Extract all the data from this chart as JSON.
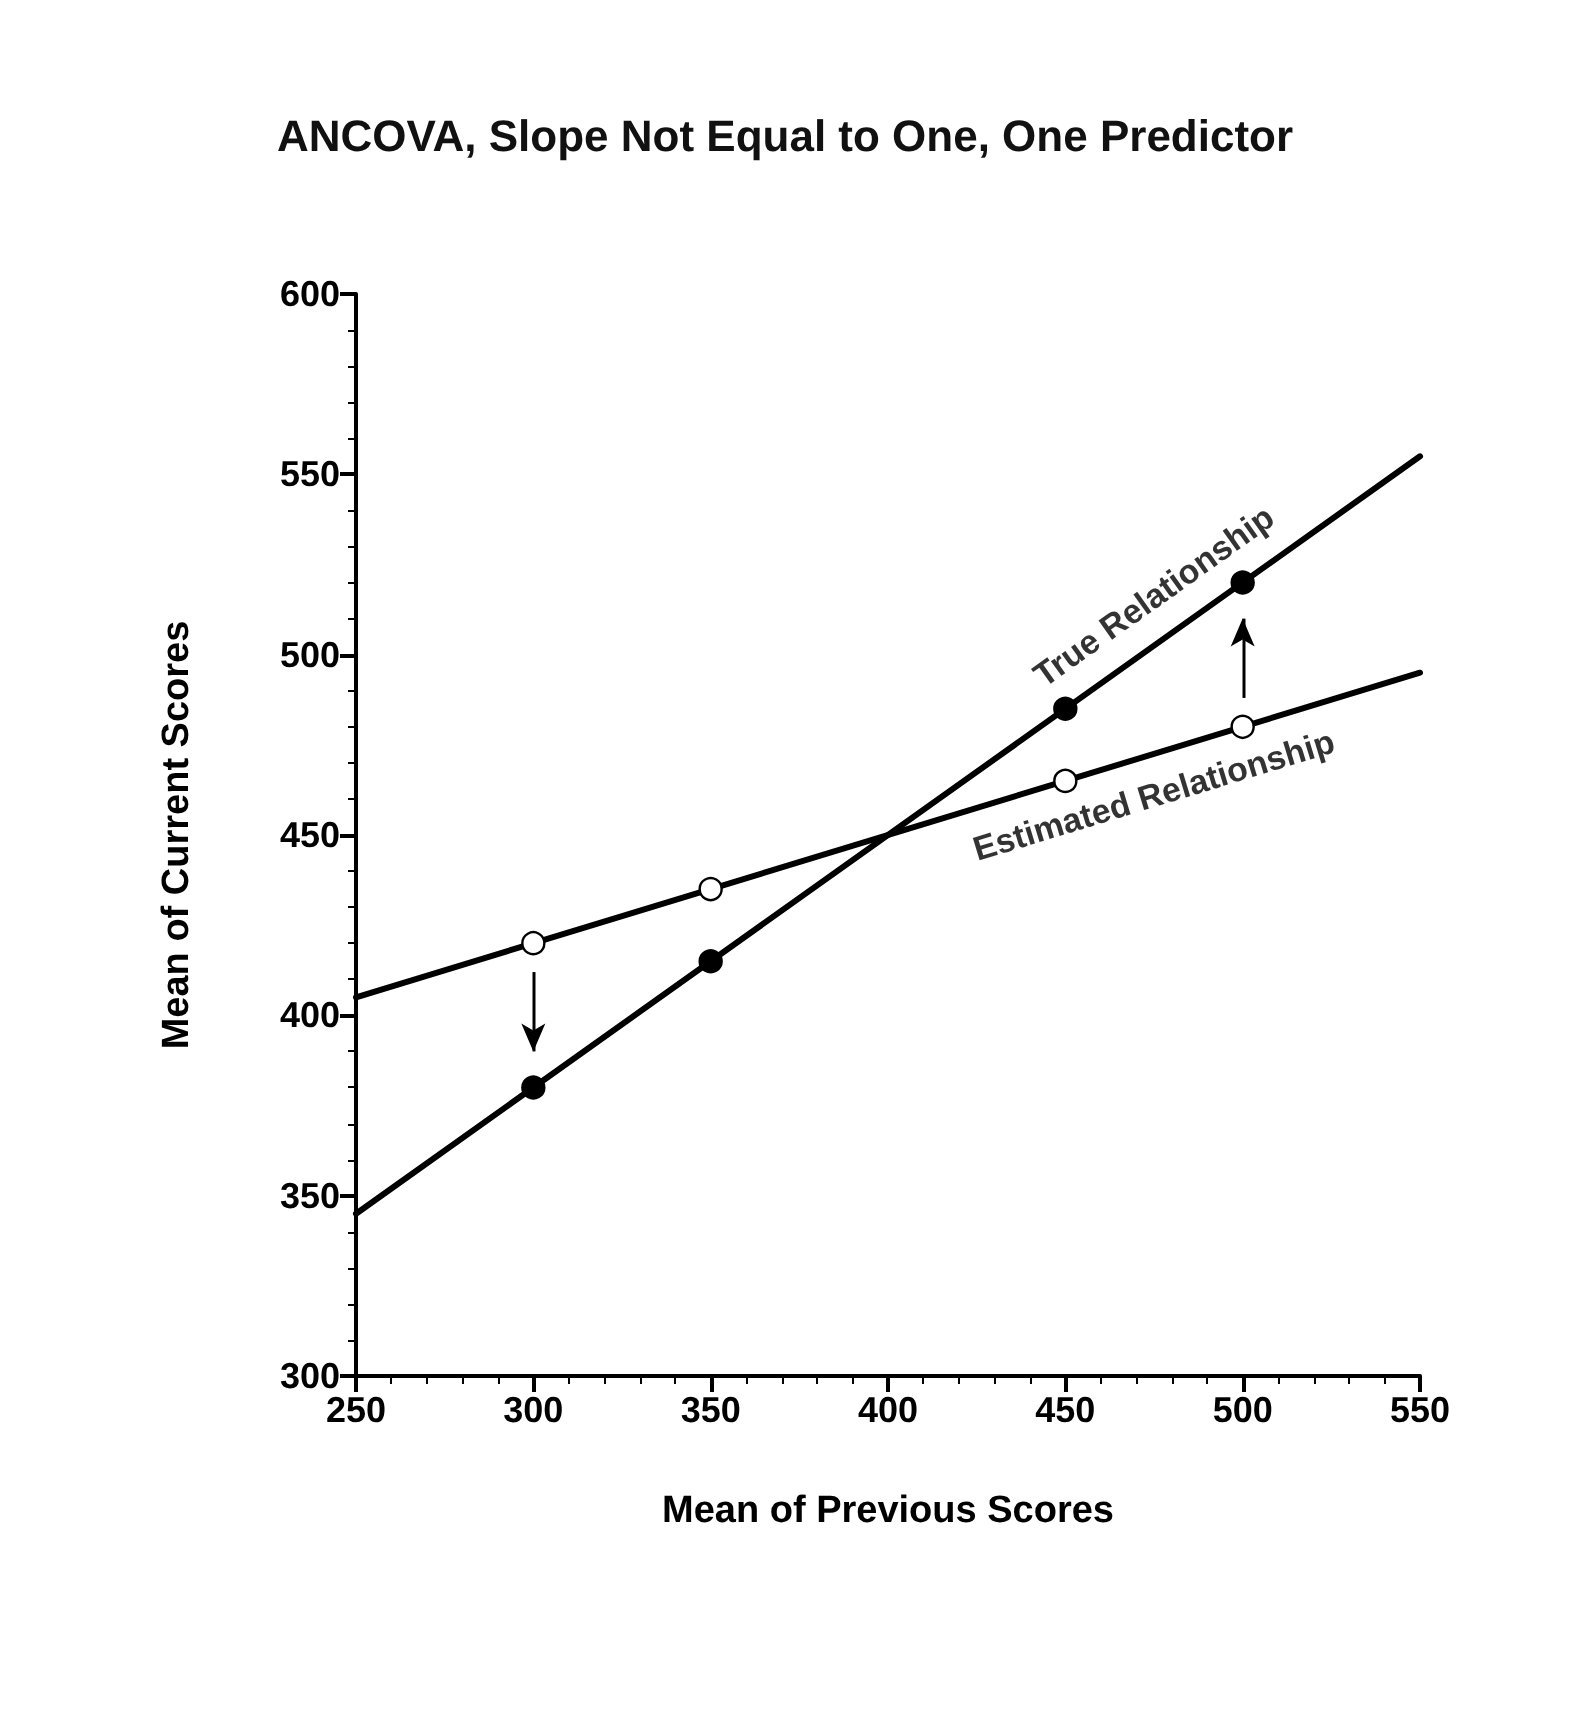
{
  "chart_data": {
    "type": "line",
    "title": "ANCOVA, Slope Not Equal to One, One Predictor",
    "xlabel": "Mean of Previous Scores",
    "ylabel": "Mean of Current Scores",
    "series": [
      {
        "type": "line",
        "color": "#000000",
        "x": [
          250,
          550
        ],
        "values": [
          345,
          555
        ]
      },
      {
        "type": "line",
        "color": "#000000",
        "x": [
          250,
          550
        ],
        "values": [
          405,
          495
        ]
      },
      {
        "type": "scatter",
        "color": "#000000",
        "marker": "circle",
        "x": [
          300,
          350,
          450,
          500
        ],
        "values": [
          380,
          415,
          485,
          520
        ]
      },
      {
        "type": "scatter",
        "color": "#ffffff",
        "marker": "circle",
        "x": [
          300,
          350,
          450,
          500
        ],
        "values": [
          420,
          435,
          465,
          480
        ]
      }
    ],
    "annotations": [
      "True Relationship",
      "Estimated Relationship"
    ],
    "xlim": [
      250,
      550
    ],
    "xticks": [
      250,
      300,
      350,
      400,
      450,
      500,
      550
    ],
    "ylim": [
      300,
      600
    ],
    "yticks": [
      300,
      350,
      400,
      450,
      500,
      550,
      600
    ],
    "grid": false,
    "line_style": "solid"
  }
}
